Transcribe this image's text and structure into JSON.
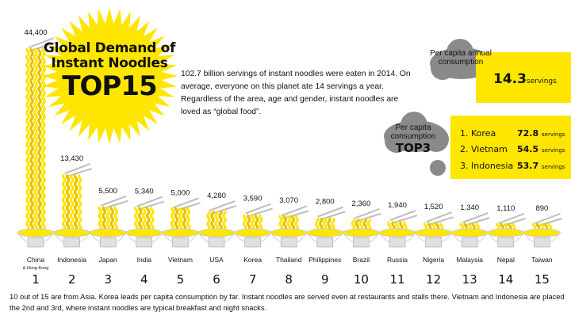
{
  "title": {
    "line1": "Global Demand of",
    "line2": "Instant Noodles",
    "line3": "TOP15"
  },
  "intro": "102.7 billion servings of instant noodles were eaten in 2014. On average, everyone on this planet ate 14 servings a year. Regardless of the area, age and gender, instant noodles are loved as “global food”.",
  "annual": {
    "label": "Per capita annual consumption",
    "value": "14.3",
    "unit": "servings"
  },
  "top3": {
    "label_line1": "Per capita consumption",
    "label_line2": "TOP3",
    "items": [
      {
        "rank": "1.",
        "country": "Korea",
        "value": "72.8",
        "unit": "servings"
      },
      {
        "rank": "2.",
        "country": "Vietnam",
        "value": "54.5",
        "unit": "servings"
      },
      {
        "rank": "3.",
        "country": "Indonesia",
        "value": "53.7",
        "unit": "servings"
      }
    ]
  },
  "footnote": "10 out of 15 are from Asia. Korea leads per capita consumption by far. Instant noodles are served even at restaurants and stalls there. Vietnam and Indonesia are placed the 2nd and 3rd, where instant noodles are typical breakfast and night snacks.",
  "colors": {
    "noodle": "#ffe600",
    "noodle_dark": "#e6c200",
    "bowl": "#ffffff",
    "bowl_edge": "#cccccc",
    "cloud": "#8a8a8a",
    "chopsticks": "#bdbdbd",
    "accent": "#ffe600"
  },
  "chart_data": {
    "type": "bar",
    "categories": [
      "China",
      "Indonesia",
      "Japan",
      "India",
      "Vietnam",
      "USA",
      "Korea",
      "Thailand",
      "Philippines",
      "Brazil",
      "Russia",
      "Nigeria",
      "Malaysia",
      "Nepal",
      "Taiwan"
    ],
    "category_notes": [
      "& Hong Kong",
      "",
      "",
      "",
      "",
      "",
      "",
      "",
      "",
      "",
      "",
      "",
      "",
      "",
      ""
    ],
    "ranks": [
      "1",
      "2",
      "3",
      "4",
      "5",
      "6",
      "7",
      "8",
      "9",
      "10",
      "11",
      "12",
      "13",
      "14",
      "15"
    ],
    "value_labels": [
      "44,400",
      "13,430",
      "5,500",
      "5,340",
      "5,000",
      "4,280",
      "3,590",
      "3,070",
      "2,800",
      "2,360",
      "1,940",
      "1,520",
      "1,340",
      "1,110",
      "890"
    ],
    "values": [
      44400,
      13430,
      5500,
      5340,
      5000,
      4280,
      3590,
      3070,
      2800,
      2360,
      1940,
      1520,
      1340,
      1110,
      890
    ],
    "ylim": [
      0,
      44400
    ]
  }
}
